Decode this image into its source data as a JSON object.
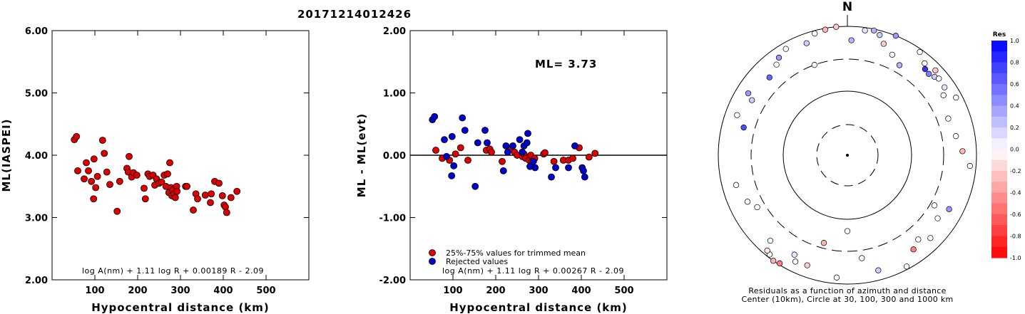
{
  "title": "20171214012426",
  "colors": {
    "red_point": "#dd0000",
    "blue_point": "#0000cc",
    "background": "#ffffff"
  },
  "chart_data": [
    {
      "id": "ml_vs_distance",
      "type": "scatter",
      "xlabel": "Hypocentral distance (km)",
      "ylabel": "ML(IASPEI)",
      "xlim": [
        0,
        600
      ],
      "ylim": [
        2.0,
        6.0
      ],
      "xticks": [
        100,
        200,
        300,
        400,
        500
      ],
      "xtick_labels": [
        "100",
        "200",
        "300",
        "400",
        "500"
      ],
      "yticks": [
        2.0,
        3.0,
        4.0,
        5.0,
        6.0
      ],
      "ytick_labels": [
        "2.00",
        "3.00",
        "4.00",
        "5.00",
        "6.00"
      ],
      "grid": false,
      "formula": "log A(nm) + 1.11 log R + 0.00189 R - 2.09",
      "series": [
        {
          "color": "#dd0000",
          "points": [
            [
              52,
              4.25
            ],
            [
              57,
              4.3
            ],
            [
              60,
              3.75
            ],
            [
              75,
              3.62
            ],
            [
              80,
              3.88
            ],
            [
              85,
              3.75
            ],
            [
              92,
              3.58
            ],
            [
              97,
              3.3
            ],
            [
              98,
              3.94
            ],
            [
              102,
              3.48
            ],
            [
              106,
              3.66
            ],
            [
              118,
              4.24
            ],
            [
              122,
              4.03
            ],
            [
              128,
              3.73
            ],
            [
              135,
              3.53
            ],
            [
              152,
              3.1
            ],
            [
              158,
              3.58
            ],
            [
              175,
              3.79
            ],
            [
              178,
              3.73
            ],
            [
              180,
              3.98
            ],
            [
              186,
              3.65
            ],
            [
              190,
              3.72
            ],
            [
              198,
              3.68
            ],
            [
              215,
              3.47
            ],
            [
              218,
              3.3
            ],
            [
              224,
              3.7
            ],
            [
              228,
              3.66
            ],
            [
              236,
              3.68
            ],
            [
              240,
              3.52
            ],
            [
              244,
              3.62
            ],
            [
              250,
              3.55
            ],
            [
              256,
              3.57
            ],
            [
              262,
              3.68
            ],
            [
              266,
              3.5
            ],
            [
              270,
              3.7
            ],
            [
              273,
              3.4
            ],
            [
              275,
              3.88
            ],
            [
              278,
              3.48
            ],
            [
              280,
              3.35
            ],
            [
              282,
              3.44
            ],
            [
              285,
              3.38
            ],
            [
              288,
              3.32
            ],
            [
              291,
              3.5
            ],
            [
              292,
              3.42
            ],
            [
              312,
              3.5
            ],
            [
              315,
              3.5
            ],
            [
              330,
              3.12
            ],
            [
              336,
              3.38
            ],
            [
              340,
              3.3
            ],
            [
              358,
              3.36
            ],
            [
              370,
              3.24
            ],
            [
              372,
              3.38
            ],
            [
              380,
              3.58
            ],
            [
              390,
              3.55
            ],
            [
              398,
              3.35
            ],
            [
              402,
              3.2
            ],
            [
              405,
              3.17
            ],
            [
              408,
              3.08
            ],
            [
              418,
              3.32
            ],
            [
              432,
              3.42
            ]
          ]
        }
      ]
    },
    {
      "id": "residual_vs_distance",
      "type": "scatter",
      "xlabel": "Hypocentral distance (km)",
      "ylabel": "ML - ML(evt)",
      "xlim": [
        0,
        600
      ],
      "ylim": [
        -2.0,
        2.0
      ],
      "xticks": [
        100,
        200,
        300,
        400,
        500
      ],
      "xtick_labels": [
        "100",
        "200",
        "300",
        "400",
        "500"
      ],
      "yticks": [
        -2.0,
        -1.0,
        0.0,
        1.0,
        2.0
      ],
      "ytick_labels": [
        "-2.00",
        "-1.00",
        "0.00",
        "1.00",
        "2.00"
      ],
      "grid": false,
      "zero_line": true,
      "annotation": "ML= 3.73",
      "formula": "log A(nm) + 1.11 log R + 0.00267 R - 2.09",
      "legend_position": "bottom-left",
      "series": [
        {
          "name": "25%-75% values for trimmed mean",
          "color": "#dd0000",
          "points": [
            [
              60,
              0.08
            ],
            [
              75,
              -0.05
            ],
            [
              92,
              -0.08
            ],
            [
              106,
              0.02
            ],
            [
              118,
              0.12
            ],
            [
              135,
              -0.08
            ],
            [
              178,
              0.08
            ],
            [
              186,
              0.1
            ],
            [
              190,
              0.05
            ],
            [
              215,
              -0.1
            ],
            [
              236,
              0.1
            ],
            [
              244,
              0.05
            ],
            [
              250,
              0.0
            ],
            [
              262,
              -0.02
            ],
            [
              266,
              0.02
            ],
            [
              270,
              -0.05
            ],
            [
              278,
              -0.08
            ],
            [
              282,
              0.0
            ],
            [
              285,
              -0.1
            ],
            [
              291,
              -0.05
            ],
            [
              312,
              0.02
            ],
            [
              315,
              0.04
            ],
            [
              336,
              -0.1
            ],
            [
              358,
              -0.08
            ],
            [
              370,
              -0.08
            ],
            [
              380,
              -0.05
            ],
            [
              395,
              0.12
            ],
            [
              418,
              -0.03
            ],
            [
              432,
              0.03
            ]
          ]
        },
        {
          "name": "Rejected values",
          "color": "#0000cc",
          "points": [
            [
              52,
              0.57
            ],
            [
              57,
              0.62
            ],
            [
              80,
              0.25
            ],
            [
              85,
              -0.02
            ],
            [
              97,
              -0.33
            ],
            [
              98,
              0.3
            ],
            [
              102,
              -0.17
            ],
            [
              122,
              0.6
            ],
            [
              128,
              0.4
            ],
            [
              152,
              -0.5
            ],
            [
              158,
              0.2
            ],
            [
              175,
              0.4
            ],
            [
              180,
              0.2
            ],
            [
              218,
              -0.25
            ],
            [
              224,
              0.15
            ],
            [
              228,
              0.05
            ],
            [
              240,
              0.15
            ],
            [
              256,
              0.25
            ],
            [
              262,
              0.05
            ],
            [
              266,
              0.15
            ],
            [
              273,
              0.2
            ],
            [
              275,
              0.35
            ],
            [
              280,
              -0.18
            ],
            [
              288,
              -0.1
            ],
            [
              292,
              -0.2
            ],
            [
              330,
              -0.35
            ],
            [
              340,
              -0.2
            ],
            [
              370,
              -0.2
            ],
            [
              385,
              0.15
            ],
            [
              402,
              -0.2
            ],
            [
              405,
              -0.25
            ],
            [
              408,
              -0.35
            ]
          ]
        }
      ]
    },
    {
      "id": "azimuth_residuals",
      "type": "scatter",
      "caption_line1": "Residuals as a function of azimuth and distance",
      "caption_line2": "Center (10km), Circle at 30, 100, 300 and 1000 km",
      "north_label": "N",
      "colorbar_title": "Res",
      "colorbar_range": [
        -1.0,
        1.0
      ],
      "colorbar_tick_labels": [
        "1.0",
        "0.8",
        "0.6",
        "0.4",
        "0.2",
        "0.0",
        "-0.2",
        "-0.4",
        "-0.6",
        "-0.8",
        "-1.0"
      ],
      "colorbar_tick_values": [
        1.0,
        0.8,
        0.6,
        0.4,
        0.2,
        0.0,
        -0.2,
        -0.4,
        -0.6,
        -0.8,
        -1.0
      ],
      "points": [
        {
          "az": 2,
          "dist": 600,
          "res": 0.3
        },
        {
          "az": 12,
          "dist": 950,
          "res": 0.3
        },
        {
          "az": 18,
          "dist": 650,
          "res": -0.2
        },
        {
          "az": 24,
          "dist": 500,
          "res": 0.0
        },
        {
          "az": 30,
          "dist": 400,
          "res": 0.3
        },
        {
          "az": 35,
          "dist": 900,
          "res": 0.0
        },
        {
          "az": 40,
          "dist": 720,
          "res": 0.0
        },
        {
          "az": 42,
          "dist": 620,
          "res": 0.8
        },
        {
          "az": 45,
          "dist": 600,
          "res": 0.5
        },
        {
          "az": 48,
          "dist": 650,
          "res": 0.2
        },
        {
          "az": 50,
          "dist": 700,
          "res": 0.0
        },
        {
          "az": 46,
          "dist": 780,
          "res": -0.2
        },
        {
          "az": 55,
          "dist": 680,
          "res": 0.1
        },
        {
          "az": 58,
          "dist": 560,
          "res": 0.0
        },
        {
          "az": 62,
          "dist": 800,
          "res": 0.0
        },
        {
          "az": 70,
          "dist": 450,
          "res": 0.0
        },
        {
          "az": 80,
          "dist": 500,
          "res": 0.0
        },
        {
          "az": 88,
          "dist": 600,
          "res": -0.3
        },
        {
          "az": 95,
          "dist": 800,
          "res": 0.0
        },
        {
          "az": 120,
          "dist": 350,
          "res": 0.0
        },
        {
          "az": 118,
          "dist": 600,
          "res": 0.4
        },
        {
          "az": 125,
          "dist": 500,
          "res": 0.0
        },
        {
          "az": 135,
          "dist": 650,
          "res": 0.0
        },
        {
          "az": 140,
          "dist": 500,
          "res": 0.0
        },
        {
          "az": 145,
          "dist": 600,
          "res": -0.5
        },
        {
          "az": 152,
          "dist": 900,
          "res": 0.0
        },
        {
          "az": 165,
          "dist": 700,
          "res": 0.2
        },
        {
          "az": 172,
          "dist": 400,
          "res": 0.0
        },
        {
          "az": 180,
          "dist": 150,
          "res": 0.0
        },
        {
          "az": 185,
          "dist": 800,
          "res": 0.0
        },
        {
          "az": 195,
          "dist": 250,
          "res": -0.3
        },
        {
          "az": 200,
          "dist": 650,
          "res": -0.2
        },
        {
          "az": 206,
          "dist": 680,
          "res": 0.0
        },
        {
          "az": 208,
          "dist": 550,
          "res": 0.1
        },
        {
          "az": 212,
          "dist": 950,
          "res": -0.5
        },
        {
          "az": 215,
          "dist": 1000,
          "res": -0.3
        },
        {
          "az": 218,
          "dist": 900,
          "res": 0.0
        },
        {
          "az": 222,
          "dist": 600,
          "res": 0.0
        },
        {
          "az": 220,
          "dist": 850,
          "res": -0.1
        },
        {
          "az": 240,
          "dist": 400,
          "res": 0.0
        },
        {
          "az": 245,
          "dist": 500,
          "res": 0.0
        },
        {
          "az": 255,
          "dist": 600,
          "res": 0.0
        },
        {
          "az": 285,
          "dist": 450,
          "res": 0.7
        },
        {
          "az": 290,
          "dist": 650,
          "res": 0.0
        },
        {
          "az": 300,
          "dist": 500,
          "res": 0.2
        },
        {
          "az": 302,
          "dist": 640,
          "res": 0.4
        },
        {
          "az": 315,
          "dist": 500,
          "res": 0.6
        },
        {
          "az": 322,
          "dist": 600,
          "res": 0.0
        },
        {
          "az": 325,
          "dist": 700,
          "res": 0.4
        },
        {
          "az": 330,
          "dist": 800,
          "res": 0.0
        },
        {
          "az": 340,
          "dist": 300,
          "res": 0.0
        },
        {
          "az": 345,
          "dist": 900,
          "res": 0.0
        },
        {
          "az": 350,
          "dist": 950,
          "res": -0.3
        },
        {
          "az": 355,
          "dist": 1000,
          "res": -0.2
        },
        {
          "az": 8,
          "dist": 900,
          "res": 0.1
        },
        {
          "az": 22,
          "dist": 1000,
          "res": 0.4
        },
        {
          "az": 15,
          "dist": 850,
          "res": 0.2
        },
        {
          "az": 340,
          "dist": 700,
          "res": 0.2
        }
      ]
    }
  ]
}
